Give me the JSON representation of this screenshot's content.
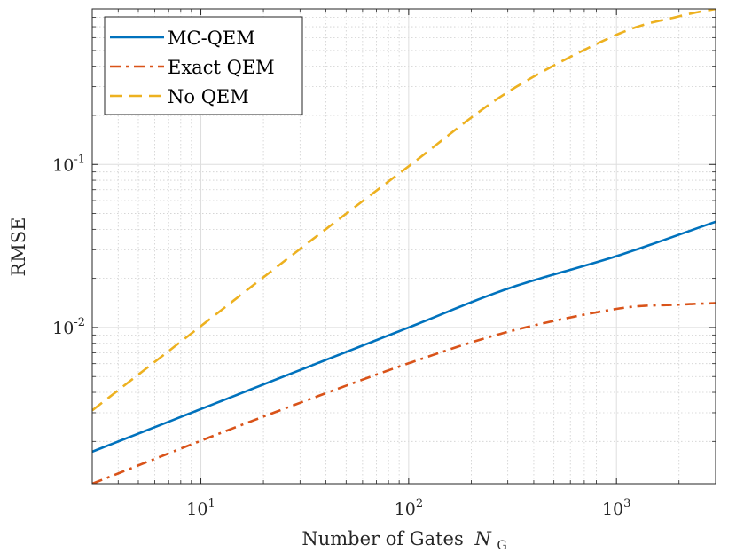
{
  "chart_data": {
    "type": "line",
    "title": "",
    "xlabel": "Number of Gates",
    "xlabel_symbol": "N",
    "xlabel_subscript": "G",
    "ylabel": "RMSE",
    "xscale": "log",
    "yscale": "log",
    "xlim": [
      3,
      3000
    ],
    "ylim": [
      0.0011,
      0.9
    ],
    "grid": true,
    "minor_grid": true,
    "legend_position": "top-left",
    "x_ticks": [
      {
        "value": 10,
        "base": "10",
        "exp": "1"
      },
      {
        "value": 100,
        "base": "10",
        "exp": "2"
      },
      {
        "value": 1000,
        "base": "10",
        "exp": "3"
      }
    ],
    "y_ticks": [
      {
        "value": 0.01,
        "base": "10",
        "exp": "-2"
      },
      {
        "value": 0.1,
        "base": "10",
        "exp": "-1"
      }
    ],
    "series": [
      {
        "name": "MC-QEM",
        "color": "#0072BD",
        "dash": "solid",
        "x": [
          3,
          10,
          30,
          100,
          300,
          1000,
          3000
        ],
        "y": [
          0.00173,
          0.00316,
          0.00548,
          0.01,
          0.0173,
          0.0274,
          0.0445
        ]
      },
      {
        "name": "Exact QEM",
        "color": "#D95319",
        "dash": "dashdot",
        "x": [
          3,
          10,
          30,
          100,
          300,
          1000,
          2000,
          3000
        ],
        "y": [
          0.0011,
          0.00202,
          0.00345,
          0.00603,
          0.0094,
          0.013,
          0.0138,
          0.0141
        ]
      },
      {
        "name": "No QEM",
        "color": "#EDB120",
        "dash": "dashed",
        "x": [
          3,
          10,
          30,
          100,
          300,
          1000,
          2000,
          3000
        ],
        "y": [
          0.0031,
          0.0102,
          0.0303,
          0.0975,
          0.278,
          0.624,
          0.81,
          0.9
        ]
      }
    ]
  }
}
